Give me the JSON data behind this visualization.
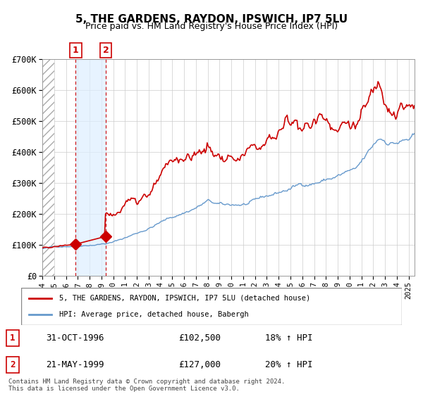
{
  "title": "5, THE GARDENS, RAYDON, IPSWICH, IP7 5LU",
  "subtitle": "Price paid vs. HM Land Registry's House Price Index (HPI)",
  "legend_line1": "5, THE GARDENS, RAYDON, IPSWICH, IP7 5LU (detached house)",
  "legend_line2": "HPI: Average price, detached house, Babergh",
  "footer": "Contains HM Land Registry data © Crown copyright and database right 2024.\nThis data is licensed under the Open Government Licence v3.0.",
  "red_color": "#cc0000",
  "blue_color": "#6699cc",
  "sale1_date_x": 1996.83,
  "sale1_price": 102500,
  "sale1_label": "1",
  "sale1_text": "31-OCT-1996",
  "sale1_amount": "£102,500",
  "sale1_hpi": "18% ↑ HPI",
  "sale2_date_x": 1999.38,
  "sale2_price": 127000,
  "sale2_label": "2",
  "sale2_text": "21-MAY-1999",
  "sale2_amount": "£127,000",
  "sale2_hpi": "20% ↑ HPI",
  "xmin": 1994.0,
  "xmax": 2025.5,
  "ymin": 0,
  "ymax": 700000,
  "yticks": [
    0,
    100000,
    200000,
    300000,
    400000,
    500000,
    600000,
    700000
  ],
  "ytick_labels": [
    "£0",
    "£100K",
    "£200K",
    "£300K",
    "£400K",
    "£500K",
    "£600K",
    "£700K"
  ],
  "background_color": "#ffffff",
  "hatch_region_end": 1995.0
}
